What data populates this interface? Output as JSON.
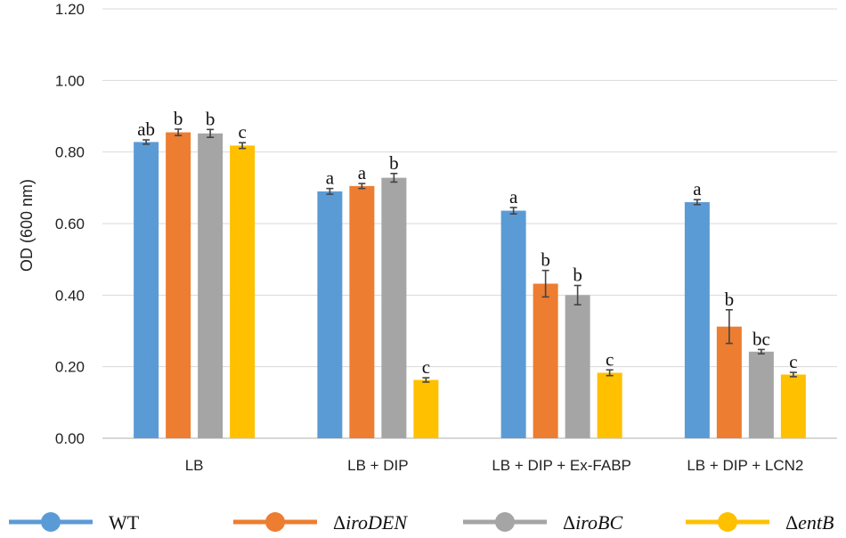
{
  "chart_data": {
    "type": "bar",
    "title": "",
    "xlabel": "",
    "ylabel": "OD (600 nm)",
    "ylim": [
      0,
      1.2
    ],
    "yticks": [
      "0.00",
      "0.20",
      "0.40",
      "0.60",
      "0.80",
      "1.00",
      "1.20"
    ],
    "grid": true,
    "legend_position": "bottom",
    "categories": [
      "LB",
      "LB + DIP",
      "LB + DIP + Ex-FABP",
      "LB + DIP + LCN2"
    ],
    "series": [
      {
        "name": "WT",
        "prefix": "",
        "italic": "",
        "color": "#5b9bd5",
        "values": [
          0.828,
          0.69,
          0.636,
          0.66
        ],
        "errors": [
          0.006,
          0.008,
          0.009,
          0.007
        ],
        "labels": [
          "ab",
          "a",
          "a",
          "a"
        ]
      },
      {
        "name": "ΔiroDEN",
        "prefix": "Δ",
        "italic": "iroDEN",
        "color": "#ed7d31",
        "values": [
          0.855,
          0.705,
          0.432,
          0.312
        ],
        "errors": [
          0.009,
          0.007,
          0.037,
          0.047
        ],
        "labels": [
          "b",
          "a",
          "b",
          "b"
        ]
      },
      {
        "name": "ΔiroBC",
        "prefix": "Δ",
        "italic": "iroBC",
        "color": "#a5a5a5",
        "values": [
          0.852,
          0.728,
          0.4,
          0.242
        ],
        "errors": [
          0.011,
          0.012,
          0.027,
          0.006
        ],
        "labels": [
          "b",
          "b",
          "b",
          "bc"
        ]
      },
      {
        "name": "ΔentB",
        "prefix": "Δ",
        "italic": "entB",
        "color": "#ffc000",
        "values": [
          0.818,
          0.163,
          0.183,
          0.178
        ],
        "errors": [
          0.008,
          0.006,
          0.008,
          0.006
        ],
        "labels": [
          "c",
          "c",
          "c",
          "c"
        ]
      }
    ]
  }
}
